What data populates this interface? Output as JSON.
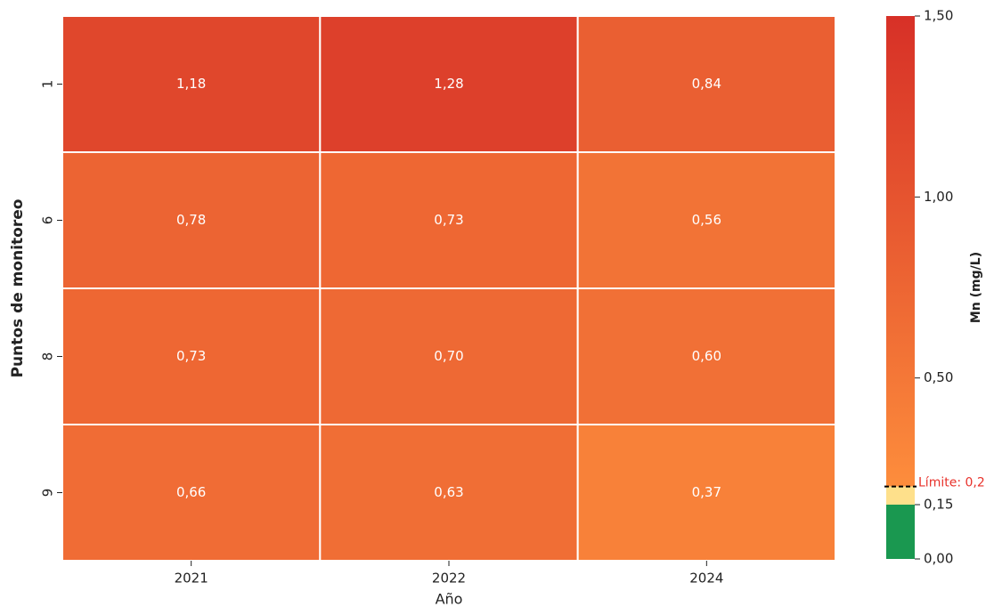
{
  "chart_data": {
    "type": "heatmap",
    "x_label": "Año",
    "y_label": "Puntos de monitoreo",
    "colorbar_label": "Mn  (mg/L)",
    "columns": [
      "2021",
      "2022",
      "2024"
    ],
    "rows": [
      "1",
      "6",
      "8",
      "9"
    ],
    "values": [
      [
        1.18,
        1.28,
        0.84
      ],
      [
        0.78,
        0.73,
        0.56
      ],
      [
        0.73,
        0.7,
        0.6
      ],
      [
        0.66,
        0.63,
        0.37
      ]
    ],
    "value_labels": [
      [
        "1,18",
        "1,28",
        "0,84"
      ],
      [
        "0,78",
        "0,73",
        "0,56"
      ],
      [
        "0,73",
        "0,70",
        "0,60"
      ],
      [
        "0,66",
        "0,63",
        "0,37"
      ]
    ],
    "clim": [
      0,
      1.5
    ],
    "cticks": [
      {
        "value": 0,
        "label": "0,00"
      },
      {
        "value": 0.15,
        "label": "0,15"
      },
      {
        "value": 0.5,
        "label": "0,50"
      },
      {
        "value": 1.0,
        "label": "1,00"
      },
      {
        "value": 1.5,
        "label": "1,50"
      }
    ],
    "color_bands": [
      {
        "from": 0,
        "to": 0.15,
        "color": "#1a9850"
      },
      {
        "from": 0.15,
        "to": 0.2,
        "color": "#fee08b"
      }
    ],
    "color_gradient": {
      "from": 0.2,
      "to": 1.5,
      "colors": [
        "#fd8d3c",
        "#d73027"
      ]
    },
    "limit": {
      "value": 0.2,
      "label": "Límite: 0,2",
      "color": "#e8322b"
    }
  }
}
